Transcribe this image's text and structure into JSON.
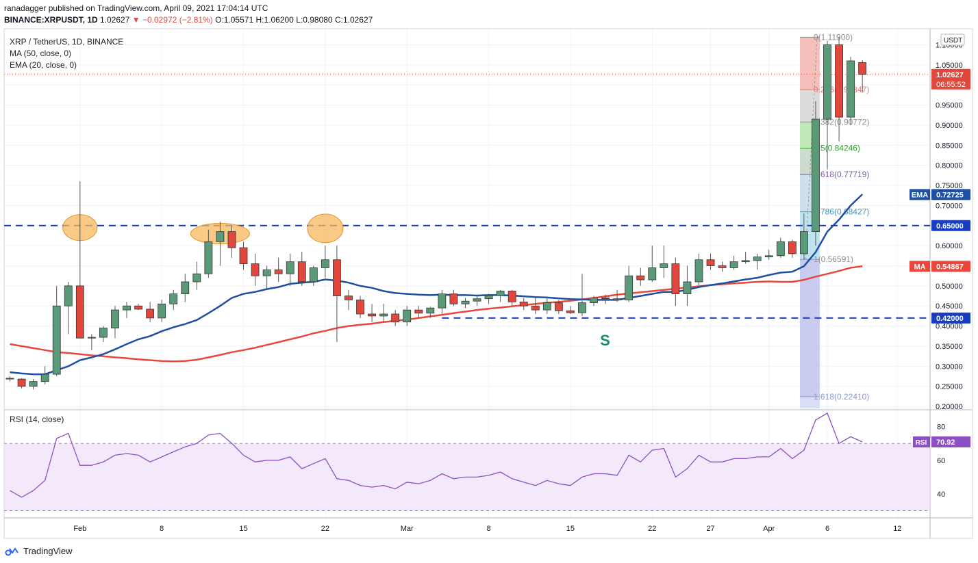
{
  "header": {
    "line1": "ranadagger published on TradingView.com, April 09, 2021 17:04:14 UTC",
    "symbol": "BINANCE:XRPUSDT, 1D",
    "last": "1.02627",
    "change": "▼ −0.02972 (−2.81%)",
    "o": "O:1.05571",
    "h": "H:1.06200",
    "l": "L:0.98080",
    "c": "C:1.02627"
  },
  "legend": {
    "title": "XRP / TetherUS, 1D, BINANCE",
    "ma": "MA (50, close, 0)",
    "ema": "EMA (20, close, 0)",
    "rsi": "RSI (14, close)"
  },
  "footer": {
    "brand": "TradingView"
  },
  "colors": {
    "up": "#5b9a78",
    "down": "#e0483d",
    "ema": "#1e4fa2",
    "ma": "#e8473b",
    "level": "#1a3dc0",
    "rsi": "#8d4fc4"
  },
  "chart_data": {
    "type": "candlestick",
    "currency": "USDT",
    "x_labels": [
      {
        "i": 6,
        "t": "Feb"
      },
      {
        "i": 13,
        "t": "8"
      },
      {
        "i": 20,
        "t": "15"
      },
      {
        "i": 27,
        "t": "22"
      },
      {
        "i": 34,
        "t": "Mar"
      },
      {
        "i": 41,
        "t": "8"
      },
      {
        "i": 48,
        "t": "15"
      },
      {
        "i": 55,
        "t": "22"
      },
      {
        "i": 60,
        "t": "27"
      },
      {
        "i": 65,
        "t": "Apr"
      },
      {
        "i": 70,
        "t": "6"
      },
      {
        "i": 76,
        "t": "12"
      }
    ],
    "y_ticks": [
      "0.20000",
      "0.25000",
      "0.30000",
      "0.35000",
      "0.40000",
      "0.45000",
      "0.50000",
      "0.55000",
      "0.60000",
      "0.65000",
      "0.70000",
      "0.75000",
      "0.80000",
      "0.85000",
      "0.90000",
      "0.95000",
      "1.00000",
      "1.05000",
      "1.10000"
    ],
    "ylim": [
      0.195,
      1.14
    ],
    "candles": [
      [
        0.27,
        0.275,
        0.262,
        0.268
      ],
      [
        0.268,
        0.27,
        0.245,
        0.25
      ],
      [
        0.25,
        0.268,
        0.242,
        0.262
      ],
      [
        0.262,
        0.3,
        0.255,
        0.28
      ],
      [
        0.28,
        0.5,
        0.275,
        0.45
      ],
      [
        0.45,
        0.51,
        0.38,
        0.5
      ],
      [
        0.5,
        0.76,
        0.37,
        0.37
      ],
      [
        0.37,
        0.38,
        0.34,
        0.372
      ],
      [
        0.372,
        0.4,
        0.36,
        0.395
      ],
      [
        0.395,
        0.45,
        0.37,
        0.44
      ],
      [
        0.44,
        0.46,
        0.42,
        0.45
      ],
      [
        0.45,
        0.455,
        0.44,
        0.442
      ],
      [
        0.442,
        0.46,
        0.41,
        0.42
      ],
      [
        0.42,
        0.465,
        0.41,
        0.455
      ],
      [
        0.455,
        0.49,
        0.44,
        0.48
      ],
      [
        0.48,
        0.53,
        0.46,
        0.51
      ],
      [
        0.51,
        0.56,
        0.49,
        0.53
      ],
      [
        0.53,
        0.64,
        0.52,
        0.61
      ],
      [
        0.61,
        0.66,
        0.55,
        0.635
      ],
      [
        0.635,
        0.65,
        0.57,
        0.595
      ],
      [
        0.595,
        0.61,
        0.54,
        0.555
      ],
      [
        0.555,
        0.58,
        0.5,
        0.525
      ],
      [
        0.525,
        0.55,
        0.49,
        0.54
      ],
      [
        0.54,
        0.57,
        0.51,
        0.53
      ],
      [
        0.53,
        0.58,
        0.5,
        0.56
      ],
      [
        0.56,
        0.585,
        0.5,
        0.51
      ],
      [
        0.51,
        0.55,
        0.5,
        0.545
      ],
      [
        0.545,
        0.6,
        0.52,
        0.565
      ],
      [
        0.565,
        0.6,
        0.36,
        0.475
      ],
      [
        0.475,
        0.49,
        0.44,
        0.465
      ],
      [
        0.465,
        0.475,
        0.42,
        0.43
      ],
      [
        0.43,
        0.455,
        0.41,
        0.425
      ],
      [
        0.425,
        0.455,
        0.41,
        0.43
      ],
      [
        0.43,
        0.44,
        0.4,
        0.41
      ],
      [
        0.41,
        0.45,
        0.4,
        0.44
      ],
      [
        0.44,
        0.45,
        0.42,
        0.432
      ],
      [
        0.432,
        0.448,
        0.42,
        0.445
      ],
      [
        0.445,
        0.49,
        0.43,
        0.48
      ],
      [
        0.48,
        0.49,
        0.45,
        0.455
      ],
      [
        0.455,
        0.47,
        0.445,
        0.462
      ],
      [
        0.462,
        0.475,
        0.45,
        0.468
      ],
      [
        0.468,
        0.48,
        0.455,
        0.476
      ],
      [
        0.476,
        0.49,
        0.46,
        0.487
      ],
      [
        0.487,
        0.49,
        0.45,
        0.46
      ],
      [
        0.46,
        0.47,
        0.44,
        0.45
      ],
      [
        0.45,
        0.47,
        0.43,
        0.44
      ],
      [
        0.44,
        0.47,
        0.43,
        0.458
      ],
      [
        0.458,
        0.465,
        0.43,
        0.438
      ],
      [
        0.438,
        0.45,
        0.43,
        0.433
      ],
      [
        0.433,
        0.53,
        0.425,
        0.458
      ],
      [
        0.458,
        0.475,
        0.45,
        0.47
      ],
      [
        0.47,
        0.478,
        0.455,
        0.468
      ],
      [
        0.468,
        0.49,
        0.46,
        0.465
      ],
      [
        0.465,
        0.55,
        0.46,
        0.525
      ],
      [
        0.525,
        0.545,
        0.5,
        0.515
      ],
      [
        0.515,
        0.6,
        0.51,
        0.545
      ],
      [
        0.545,
        0.6,
        0.52,
        0.555
      ],
      [
        0.555,
        0.57,
        0.45,
        0.48
      ],
      [
        0.48,
        0.55,
        0.45,
        0.51
      ],
      [
        0.51,
        0.58,
        0.5,
        0.565
      ],
      [
        0.565,
        0.58,
        0.54,
        0.55
      ],
      [
        0.55,
        0.56,
        0.535,
        0.545
      ],
      [
        0.545,
        0.575,
        0.54,
        0.56
      ],
      [
        0.56,
        0.585,
        0.555,
        0.563
      ],
      [
        0.563,
        0.58,
        0.54,
        0.572
      ],
      [
        0.572,
        0.59,
        0.565,
        0.575
      ],
      [
        0.575,
        0.62,
        0.57,
        0.61
      ],
      [
        0.61,
        0.615,
        0.57,
        0.58
      ],
      [
        0.58,
        0.68,
        0.565,
        0.635
      ],
      [
        0.635,
        0.96,
        0.6,
        0.915
      ],
      [
        0.915,
        1.11,
        0.79,
        1.1
      ],
      [
        1.1,
        1.12,
        0.86,
        0.92
      ],
      [
        0.92,
        1.07,
        0.9,
        1.06
      ],
      [
        1.0557,
        1.062,
        0.9808,
        1.02627
      ]
    ],
    "ema20": [
      0.285,
      0.282,
      0.28,
      0.28,
      0.29,
      0.3,
      0.315,
      0.322,
      0.33,
      0.342,
      0.355,
      0.367,
      0.375,
      0.387,
      0.397,
      0.405,
      0.415,
      0.432,
      0.45,
      0.47,
      0.48,
      0.485,
      0.492,
      0.497,
      0.505,
      0.508,
      0.51,
      0.516,
      0.513,
      0.508,
      0.5,
      0.495,
      0.487,
      0.482,
      0.48,
      0.478,
      0.477,
      0.478,
      0.477,
      0.477,
      0.476,
      0.477,
      0.477,
      0.476,
      0.474,
      0.472,
      0.471,
      0.469,
      0.467,
      0.466,
      0.465,
      0.465,
      0.465,
      0.47,
      0.475,
      0.48,
      0.485,
      0.485,
      0.49,
      0.497,
      0.502,
      0.506,
      0.511,
      0.516,
      0.52,
      0.527,
      0.533,
      0.535,
      0.549,
      0.584,
      0.635,
      0.665,
      0.7,
      0.728
    ],
    "ma50": [
      0.355,
      0.35,
      0.345,
      0.34,
      0.335,
      0.333,
      0.33,
      0.327,
      0.325,
      0.322,
      0.32,
      0.317,
      0.315,
      0.313,
      0.312,
      0.313,
      0.316,
      0.322,
      0.328,
      0.335,
      0.34,
      0.346,
      0.353,
      0.36,
      0.367,
      0.374,
      0.382,
      0.388,
      0.395,
      0.4,
      0.403,
      0.406,
      0.41,
      0.413,
      0.416,
      0.42,
      0.424,
      0.428,
      0.432,
      0.436,
      0.44,
      0.443,
      0.446,
      0.449,
      0.452,
      0.455,
      0.458,
      0.46,
      0.463,
      0.466,
      0.47,
      0.474,
      0.478,
      0.481,
      0.484,
      0.487,
      0.49,
      0.493,
      0.496,
      0.499,
      0.502,
      0.504,
      0.506,
      0.508,
      0.51,
      0.511,
      0.51,
      0.51,
      0.515,
      0.523,
      0.53,
      0.537,
      0.545,
      0.549
    ],
    "rsi": [
      42,
      38,
      42,
      48,
      73,
      76,
      57,
      57,
      59,
      63,
      64,
      63,
      59,
      62,
      65,
      68,
      70,
      75,
      76,
      70,
      63,
      59,
      60,
      60,
      62,
      55,
      58,
      61,
      49,
      48,
      45,
      44,
      45,
      43,
      47,
      46,
      48,
      52,
      49,
      50,
      50,
      51,
      53,
      49,
      47,
      45,
      48,
      46,
      45,
      50,
      52,
      52,
      51,
      63,
      59,
      66,
      67,
      50,
      55,
      63,
      59,
      59,
      61,
      61,
      62,
      62,
      67,
      61,
      66,
      84,
      88,
      70,
      74,
      70.92
    ],
    "rsi_ticks": [
      40,
      60,
      80
    ],
    "rsi_band": [
      30,
      70
    ],
    "levels": [
      {
        "value": 0.65,
        "label": "0.65000"
      },
      {
        "value": 0.42,
        "label": "0.42000"
      }
    ],
    "fib": [
      {
        "level": "0(1.11900)",
        "value": 1.119,
        "color": "#8c8c8c"
      },
      {
        "level": "0.236(0.98847)",
        "value": 0.98847,
        "color": "#e07b73"
      },
      {
        "level": "0.382(0.90772)",
        "value": 0.90772,
        "color": "#8c8c8c"
      },
      {
        "level": "0.5(0.84246)",
        "value": 0.84246,
        "color": "#2aa52a"
      },
      {
        "level": "0.618(0.77719)",
        "value": 0.77719,
        "color": "#7a5aa8"
      },
      {
        "level": "0.786(0.68427)",
        "value": 0.68427,
        "color": "#3a98c8"
      },
      {
        "level": "1(0.56591)",
        "value": 0.56591,
        "color": "#8c8c8c"
      },
      {
        "level": "1.618(0.22410)",
        "value": 0.2241,
        "color": "#8a96d8"
      }
    ],
    "price_tags": [
      {
        "value": 1.02627,
        "label": "1.02627",
        "sub": "06:55:52",
        "color": "#e0483d"
      },
      {
        "value": 0.72725,
        "label": "0.72725",
        "tag": "EMA",
        "color": "#1e4fa2"
      },
      {
        "value": 0.65,
        "label": "0.65000",
        "color": "#1a3dc0"
      },
      {
        "value": 0.54867,
        "label": "0.54867",
        "tag": "MA",
        "color": "#e8473b"
      },
      {
        "value": 0.42,
        "label": "0.42000",
        "color": "#1a3dc0"
      }
    ],
    "rsi_tag": {
      "label": "70.92",
      "tag": "RSI"
    },
    "annotations": [
      {
        "text": "S"
      }
    ],
    "highlights": [
      6,
      18,
      27
    ]
  }
}
